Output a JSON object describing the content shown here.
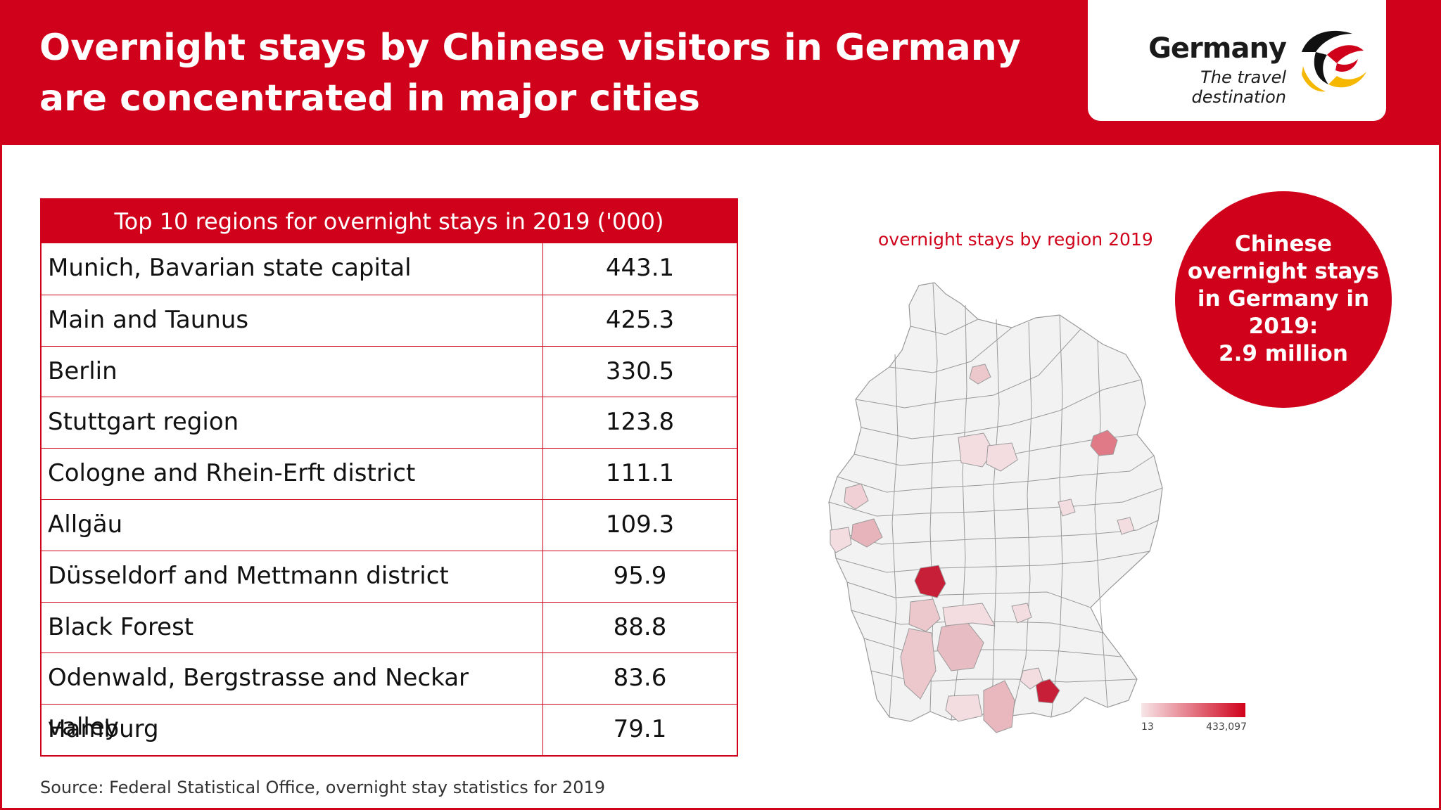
{
  "header": {
    "title_line1": "Overnight stays by Chinese visitors in Germany",
    "title_line2": "are concentrated in major cities"
  },
  "logo": {
    "wordmark": "Germany",
    "tagline": "The travel destination"
  },
  "chart_data": {
    "type": "table",
    "title": "Top 10 regions for overnight stays in 2019 ('000)",
    "rows": [
      {
        "region": "Munich, Bavarian state capital",
        "value": "443.1"
      },
      {
        "region": "Main and Taunus",
        "value": "425.3"
      },
      {
        "region": "Berlin",
        "value": "330.5"
      },
      {
        "region": "Stuttgart region",
        "value": "123.8"
      },
      {
        "region": "Cologne and Rhein-Erft district",
        "value": "111.1"
      },
      {
        "region": "Allgäu",
        "value": "109.3"
      },
      {
        "region": "Düsseldorf and Mettmann district",
        "value": "95.9"
      },
      {
        "region": "Black Forest",
        "value": "88.8"
      },
      {
        "region": "Odenwald, Bergstrasse and Neckar valley",
        "value": "83.6"
      },
      {
        "region": "Hamburg",
        "value": "79.1"
      }
    ]
  },
  "map": {
    "title": "overnight stays by region 2019",
    "legend_min": "13",
    "legend_max": "433,097",
    "colors": {
      "low": "#f7e6e8",
      "high": "#d0021b"
    }
  },
  "callout": {
    "line1": "Chinese",
    "line2": "overnight stays",
    "line3": "in Germany in",
    "line4": "2019:",
    "line5": "2.9 million"
  },
  "source": "Source: Federal Statistical Office, overnight stay statistics for 2019",
  "colors": {
    "brand_red": "#d0021b"
  }
}
